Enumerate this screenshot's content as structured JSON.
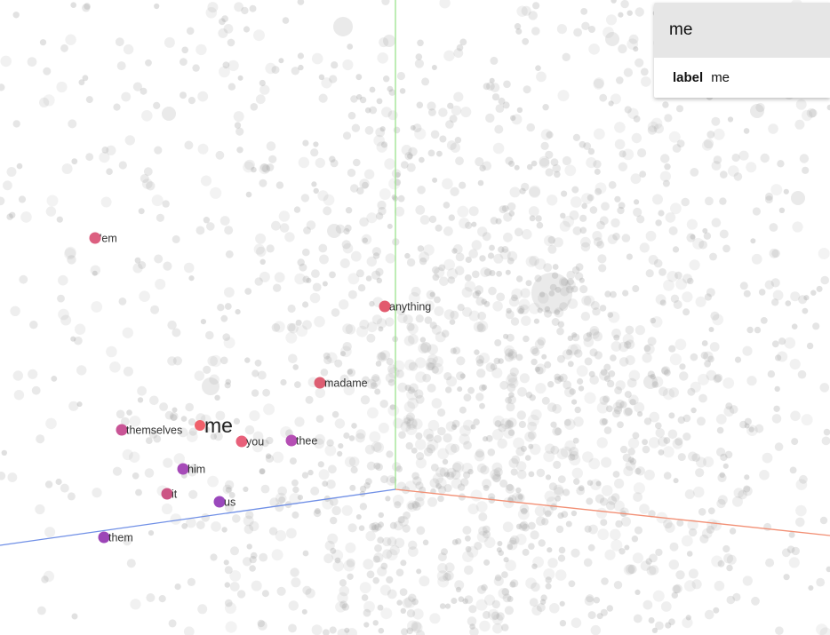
{
  "selection": {
    "title": "me",
    "fields": [
      {
        "key": "label",
        "value": "me"
      }
    ]
  },
  "colors": {
    "background": "#ffffff",
    "axis_x": "#f28f74",
    "axis_y": "#9be38d",
    "axis_z": "#6f8fe6",
    "background_point": "#9e9e9e",
    "selected": "#f0606a"
  },
  "neighbors": [
    {
      "label": "'em",
      "color": "#dc5f80"
    },
    {
      "label": "anything",
      "color": "#e25a6e"
    },
    {
      "label": "madame",
      "color": "#dd5e72"
    },
    {
      "label": "themselves",
      "color": "#c95596"
    },
    {
      "label": "me",
      "color": "#f0606a",
      "selected": true
    },
    {
      "label": "you",
      "color": "#e8607a"
    },
    {
      "label": "thee",
      "color": "#b54fb4"
    },
    {
      "label": "him",
      "color": "#a64bb8"
    },
    {
      "label": "it",
      "color": "#cc5585"
    },
    {
      "label": "us",
      "color": "#9a48bc"
    },
    {
      "label": "them",
      "color": "#9c45b7"
    }
  ]
}
